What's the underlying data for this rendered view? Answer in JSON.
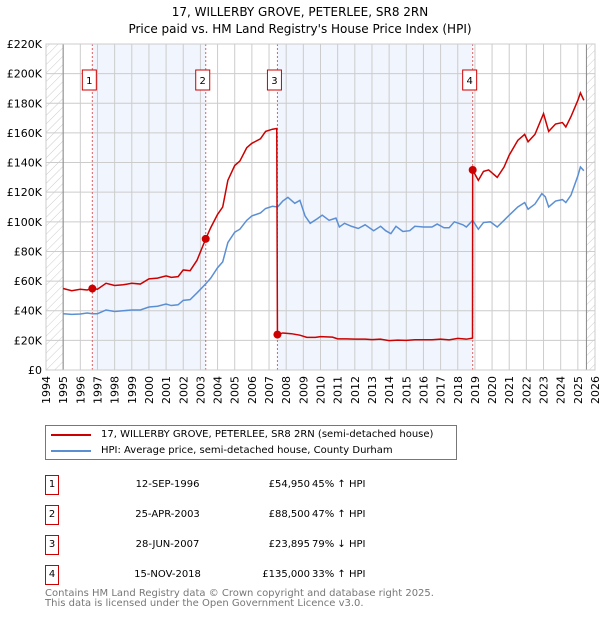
{
  "chart_data": {
    "type": "line",
    "title": "17, WILLERBY GROVE, PETERLEE, SR8 2RN",
    "subtitle": "Price paid vs. HM Land Registry's House Price Index (HPI)",
    "xlim": [
      1994,
      2026
    ],
    "ylim": [
      0,
      220000
    ],
    "x_ticks": [
      "1994",
      "1995",
      "1996",
      "1997",
      "1998",
      "1999",
      "2000",
      "2001",
      "2002",
      "2003",
      "2004",
      "2005",
      "2006",
      "2007",
      "2008",
      "2009",
      "2010",
      "2011",
      "2012",
      "2013",
      "2014",
      "2015",
      "2016",
      "2017",
      "2018",
      "2019",
      "2020",
      "2021",
      "2022",
      "2023",
      "2024",
      "2025",
      "2026"
    ],
    "y_ticks": [
      {
        "v": 0,
        "label": "£0"
      },
      {
        "v": 20000,
        "label": "£20K"
      },
      {
        "v": 40000,
        "label": "£40K"
      },
      {
        "v": 60000,
        "label": "£60K"
      },
      {
        "v": 80000,
        "label": "£80K"
      },
      {
        "v": 100000,
        "label": "£100K"
      },
      {
        "v": 120000,
        "label": "£120K"
      },
      {
        "v": 140000,
        "label": "£140K"
      },
      {
        "v": 160000,
        "label": "£160K"
      },
      {
        "v": 180000,
        "label": "£180K"
      },
      {
        "v": 200000,
        "label": "£200K"
      },
      {
        "v": 220000,
        "label": "£220K"
      }
    ],
    "grid": true,
    "data_range": [
      1995,
      2025.5
    ],
    "series": [
      {
        "name": "17, WILLERBY GROVE, PETERLEE, SR8 2RN (semi-detached house)",
        "color": "#cc0000",
        "points": [
          [
            1995,
            55000
          ],
          [
            1995.5,
            53500
          ],
          [
            1996,
            54500
          ],
          [
            1996.4,
            54000
          ],
          [
            1996.7,
            54950
          ],
          [
            1997,
            54500
          ],
          [
            1997.5,
            58500
          ],
          [
            1998,
            57000
          ],
          [
            1998.5,
            57500
          ],
          [
            1999,
            58500
          ],
          [
            1999.5,
            58000
          ],
          [
            2000,
            61500
          ],
          [
            2000.5,
            62000
          ],
          [
            2001,
            63500
          ],
          [
            2001.3,
            62500
          ],
          [
            2001.7,
            63000
          ],
          [
            2002,
            67500
          ],
          [
            2002.4,
            67000
          ],
          [
            2002.8,
            74000
          ],
          [
            2003.31,
            88500
          ],
          [
            2003.6,
            96000
          ],
          [
            2004,
            105000
          ],
          [
            2004.3,
            110000
          ],
          [
            2004.6,
            128000
          ],
          [
            2005,
            138000
          ],
          [
            2005.3,
            141000
          ],
          [
            2005.7,
            150000
          ],
          [
            2006,
            153000
          ],
          [
            2006.5,
            156000
          ],
          [
            2006.8,
            161000
          ],
          [
            2007.2,
            162500
          ],
          [
            2007.45,
            163000
          ],
          [
            2007.49,
            23895
          ],
          [
            2007.8,
            25000
          ],
          [
            2008.3,
            24500
          ],
          [
            2008.8,
            23500
          ],
          [
            2009.2,
            22000
          ],
          [
            2009.7,
            22000
          ],
          [
            2010,
            22500
          ],
          [
            2010.7,
            22200
          ],
          [
            2011,
            21000
          ],
          [
            2011.5,
            21000
          ],
          [
            2012,
            20800
          ],
          [
            2012.6,
            20800
          ],
          [
            2013,
            20500
          ],
          [
            2013.5,
            20800
          ],
          [
            2014,
            19800
          ],
          [
            2014.5,
            20200
          ],
          [
            2015,
            20000
          ],
          [
            2015.5,
            20400
          ],
          [
            2016,
            20400
          ],
          [
            2016.5,
            20400
          ],
          [
            2017,
            20800
          ],
          [
            2017.5,
            20300
          ],
          [
            2018,
            21300
          ],
          [
            2018.5,
            20800
          ],
          [
            2018.86,
            21500
          ],
          [
            2018.87,
            135000
          ],
          [
            2019.2,
            128000
          ],
          [
            2019.5,
            134000
          ],
          [
            2019.8,
            135000
          ],
          [
            2020.3,
            130000
          ],
          [
            2020.7,
            137000
          ],
          [
            2021,
            145000
          ],
          [
            2021.5,
            155000
          ],
          [
            2021.9,
            159000
          ],
          [
            2022.1,
            154000
          ],
          [
            2022.5,
            159000
          ],
          [
            2023,
            173000
          ],
          [
            2023.3,
            161000
          ],
          [
            2023.7,
            166000
          ],
          [
            2024.1,
            167000
          ],
          [
            2024.3,
            164000
          ],
          [
            2024.6,
            171000
          ],
          [
            2025,
            182000
          ],
          [
            2025.15,
            187000
          ],
          [
            2025.35,
            182000
          ]
        ]
      },
      {
        "name": "HPI: Average price, semi-detached house, County Durham",
        "color": "#5b8fd4",
        "points": [
          [
            1995,
            38000
          ],
          [
            1995.5,
            37500
          ],
          [
            1996,
            37800
          ],
          [
            1996.4,
            38500
          ],
          [
            1996.7,
            38000
          ],
          [
            1997,
            38000
          ],
          [
            1997.5,
            40500
          ],
          [
            1998,
            39500
          ],
          [
            1998.5,
            40000
          ],
          [
            1999,
            40500
          ],
          [
            1999.5,
            40500
          ],
          [
            2000,
            42500
          ],
          [
            2000.5,
            43000
          ],
          [
            2001,
            44500
          ],
          [
            2001.3,
            43500
          ],
          [
            2001.7,
            44000
          ],
          [
            2002,
            47000
          ],
          [
            2002.4,
            47500
          ],
          [
            2002.8,
            52000
          ],
          [
            2003.3,
            58000
          ],
          [
            2003.6,
            62000
          ],
          [
            2004,
            69000
          ],
          [
            2004.3,
            73000
          ],
          [
            2004.6,
            86000
          ],
          [
            2005,
            93000
          ],
          [
            2005.3,
            95000
          ],
          [
            2005.7,
            101000
          ],
          [
            2006,
            104000
          ],
          [
            2006.5,
            106000
          ],
          [
            2006.8,
            109000
          ],
          [
            2007.2,
            110500
          ],
          [
            2007.5,
            110000
          ],
          [
            2007.8,
            114000
          ],
          [
            2008.1,
            116500
          ],
          [
            2008.5,
            112500
          ],
          [
            2008.8,
            114500
          ],
          [
            2009.1,
            104000
          ],
          [
            2009.4,
            99000
          ],
          [
            2009.8,
            102000
          ],
          [
            2010.1,
            104500
          ],
          [
            2010.5,
            101000
          ],
          [
            2010.9,
            102500
          ],
          [
            2011.1,
            96500
          ],
          [
            2011.4,
            99000
          ],
          [
            2011.8,
            97000
          ],
          [
            2012.2,
            95500
          ],
          [
            2012.6,
            98000
          ],
          [
            2013.1,
            94000
          ],
          [
            2013.5,
            97000
          ],
          [
            2013.8,
            94000
          ],
          [
            2014.1,
            92000
          ],
          [
            2014.4,
            97000
          ],
          [
            2014.8,
            93500
          ],
          [
            2015.2,
            94000
          ],
          [
            2015.5,
            97000
          ],
          [
            2016,
            96500
          ],
          [
            2016.5,
            96500
          ],
          [
            2016.8,
            98500
          ],
          [
            2017.2,
            96000
          ],
          [
            2017.5,
            96000
          ],
          [
            2017.8,
            100000
          ],
          [
            2018.3,
            98000
          ],
          [
            2018.5,
            96500
          ],
          [
            2018.87,
            101000
          ],
          [
            2019.2,
            95000
          ],
          [
            2019.5,
            99500
          ],
          [
            2019.9,
            100000
          ],
          [
            2020.3,
            96500
          ],
          [
            2020.7,
            101000
          ],
          [
            2021,
            104500
          ],
          [
            2021.5,
            110000
          ],
          [
            2021.9,
            113000
          ],
          [
            2022.1,
            108500
          ],
          [
            2022.5,
            112000
          ],
          [
            2022.9,
            119000
          ],
          [
            2023.1,
            117000
          ],
          [
            2023.3,
            110000
          ],
          [
            2023.7,
            114000
          ],
          [
            2024.1,
            115000
          ],
          [
            2024.3,
            113000
          ],
          [
            2024.6,
            118000
          ],
          [
            2025,
            131000
          ],
          [
            2025.15,
            137000
          ],
          [
            2025.35,
            134500
          ]
        ]
      }
    ],
    "sales": [
      {
        "n": "1",
        "x": 1996.7,
        "date": "12-SEP-1996",
        "price_value": 54950,
        "price": "£54,950",
        "hpi": "45% ↑ HPI"
      },
      {
        "n": "2",
        "x": 2003.31,
        "date": "25-APR-2003",
        "price_value": 88500,
        "price": "£88,500",
        "hpi": "47% ↑ HPI"
      },
      {
        "n": "3",
        "x": 2007.49,
        "date": "28-JUN-2007",
        "price_value": 23895,
        "price": "£23,895",
        "hpi": "79% ↓ HPI"
      },
      {
        "n": "4",
        "x": 2018.87,
        "date": "15-NOV-2018",
        "price_value": 135000,
        "price": "£135,000",
        "hpi": "33% ↑ HPI"
      }
    ],
    "shaded_ranges": [
      [
        1996.7,
        2003.31
      ],
      [
        2007.49,
        2018.87
      ]
    ],
    "legend": [
      "17, WILLERBY GROVE, PETERLEE, SR8 2RN (semi-detached house)",
      "HPI: Average price, semi-detached house, County Durham"
    ],
    "legend_placement": "bottom"
  },
  "footer": [
    "Contains HM Land Registry data © Crown copyright and database right 2025.",
    "This data is licensed under the Open Government Licence v3.0."
  ]
}
